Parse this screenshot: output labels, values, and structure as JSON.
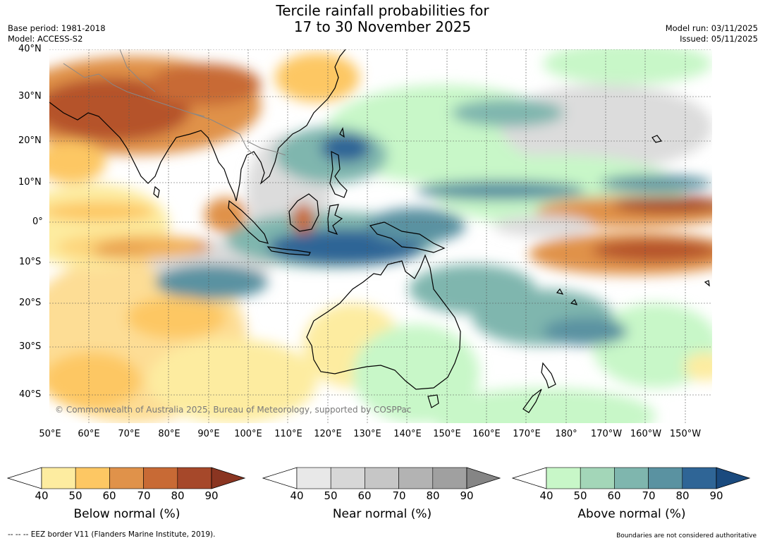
{
  "title": {
    "line1": "Tercile rainfall probabilities for",
    "line2": "17 to 30 November 2025"
  },
  "meta_left": {
    "base_period": "Base period: 1981-2018",
    "model": "Model: ACCESS-S2"
  },
  "meta_right": {
    "model_run": "Model run: 03/11/2025",
    "issued": "Issued: 05/11/2025"
  },
  "map": {
    "lat_labels": [
      "40°N",
      "30°N",
      "20°N",
      "10°N",
      "0°",
      "10°S",
      "20°S",
      "30°S",
      "40°S"
    ],
    "lon_labels": [
      "50°E",
      "60°E",
      "70°E",
      "80°E",
      "90°E",
      "100°E",
      "110°E",
      "120°E",
      "130°E",
      "140°E",
      "150°E",
      "160°E",
      "170°E",
      "180°",
      "170°W",
      "160°W",
      "150°W"
    ],
    "copyright": "© Commonwealth of Australia 2025, Bureau of Meteorology, supported by COSPPac"
  },
  "colorbars": [
    {
      "title": "Below normal (%)",
      "ticks": [
        "40",
        "50",
        "60",
        "70",
        "80",
        "90"
      ],
      "colors": [
        "#fdeca0",
        "#fdc763",
        "#e0924a",
        "#c86a35",
        "#a6482a",
        "#8a3521"
      ]
    },
    {
      "title": "Near normal (%)",
      "ticks": [
        "40",
        "50",
        "60",
        "70",
        "80",
        "90"
      ],
      "colors": [
        "#e8e8e8",
        "#d7d7d7",
        "#c6c6c6",
        "#b3b3b3",
        "#a0a0a0",
        "#858585"
      ]
    },
    {
      "title": "Above normal (%)",
      "ticks": [
        "40",
        "50",
        "60",
        "70",
        "80",
        "90"
      ],
      "colors": [
        "#c8f7c8",
        "#a3d6b8",
        "#7fb6ae",
        "#5a92a1",
        "#2f6596",
        "#1a4a7e"
      ]
    }
  ],
  "footer": {
    "eez": "--  --  -- EEZ border V11 (Flanders Marine Institute, 2019).",
    "boundaries": "Boundaries are not considered authoritative"
  },
  "colors": {
    "land_outline": "#000000",
    "country_border": "#888888",
    "grid": "#555555"
  }
}
